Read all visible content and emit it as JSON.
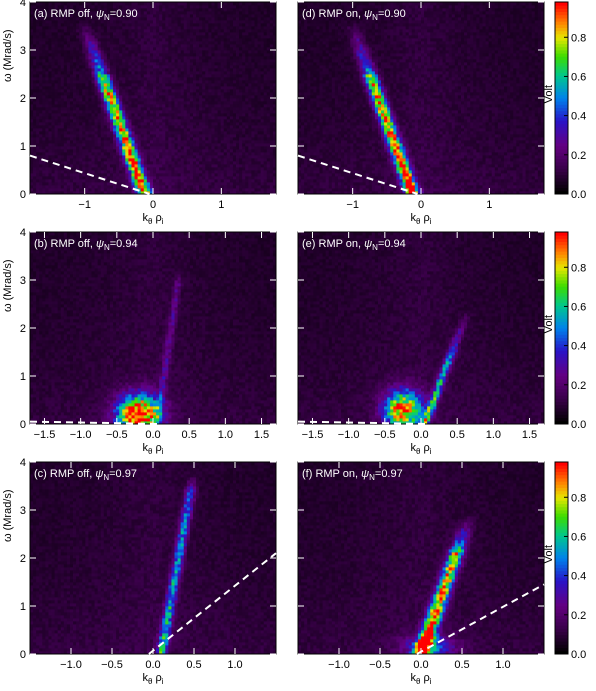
{
  "colorbar": {
    "label": "Volt",
    "ticks": [
      "0.0",
      "0.2",
      "0.4",
      "0.6",
      "0.8"
    ],
    "range": [
      0,
      0.98
    ]
  },
  "chart_data": [
    {
      "type": "heatmap",
      "panel": "(a)",
      "title_prefix": "(a) RMP off, ",
      "psi_symbol": "ψ",
      "psi_sub": "N",
      "psi_value": "=0.90",
      "xlabel_k": "k",
      "xlabel_k_sub": "θ",
      "xlabel_rho": " ρ",
      "xlabel_rho_sub": "i",
      "ylabel": "ω (Mrad/s)",
      "xlim": [
        -1.8,
        1.8
      ],
      "ylim": [
        0,
        4
      ],
      "xticks": [
        -1,
        0,
        1
      ],
      "xtick_labels": [
        "−1",
        "0",
        "1"
      ],
      "yticks": [
        0,
        1,
        2,
        3,
        4
      ],
      "ytick_labels": [
        "0",
        "1",
        "2",
        "3",
        "4"
      ],
      "ridges": [
        {
          "x0": -0.12,
          "y0": 0.0,
          "x1": -0.75,
          "y1": 2.5,
          "peak": 0.95,
          "width": 0.1,
          "fade_ymax": 3.6
        }
      ],
      "blobs": [],
      "dashed_line": [
        [
          -1.8,
          0.8
        ],
        [
          -0.05,
          0.0
        ]
      ]
    },
    {
      "type": "heatmap",
      "panel": "(d)",
      "title_prefix": "(d) RMP on, ",
      "psi_symbol": "ψ",
      "psi_sub": "N",
      "psi_value": "=0.90",
      "xlabel_k": "k",
      "xlabel_k_sub": "θ",
      "xlabel_rho": " ρ",
      "xlabel_rho_sub": "i",
      "ylabel": "",
      "xlim": [
        -1.8,
        1.8
      ],
      "ylim": [
        0,
        4
      ],
      "xticks": [
        -1,
        0,
        1
      ],
      "xtick_labels": [
        "−1",
        "0",
        "1"
      ],
      "yticks": [
        0,
        1,
        2,
        3,
        4
      ],
      "ytick_labels": [
        "",
        "",
        "",
        "",
        ""
      ],
      "ridges": [
        {
          "x0": -0.12,
          "y0": 0.0,
          "x1": -0.75,
          "y1": 2.5,
          "peak": 0.95,
          "width": 0.1,
          "fade_ymax": 3.6
        }
      ],
      "blobs": [],
      "dashed_line": [
        [
          -1.8,
          0.8
        ],
        [
          -0.05,
          0.0
        ]
      ]
    },
    {
      "type": "heatmap",
      "panel": "(b)",
      "title_prefix": "(b) RMP off, ",
      "psi_symbol": "ψ",
      "psi_sub": "N",
      "psi_value": "=0.94",
      "xlabel_k": "k",
      "xlabel_k_sub": "θ",
      "xlabel_rho": " ρ",
      "xlabel_rho_sub": "i",
      "ylabel": "ω (Mrad/s)",
      "xlim": [
        -1.7,
        1.7
      ],
      "ylim": [
        0,
        4
      ],
      "xticks": [
        -1.5,
        -1.0,
        -0.5,
        0.0,
        0.5,
        1.0,
        1.5
      ],
      "xtick_labels": [
        "−1.5",
        "−1.0",
        "−0.5",
        "0.0",
        "0.5",
        "1.0",
        "1.5"
      ],
      "yticks": [
        0,
        1,
        2,
        3,
        4
      ],
      "ytick_labels": [
        "0",
        "1",
        "2",
        "3",
        "4"
      ],
      "ridges": [
        {
          "x0": 0.05,
          "y0": 0.0,
          "x1": 0.35,
          "y1": 3.0,
          "peak": 0.2,
          "width": 0.05,
          "fade_ymax": 3.2
        }
      ],
      "blobs": [
        {
          "x": -0.2,
          "y": 0.2,
          "sx": 0.28,
          "sy": 0.4,
          "peak": 1.0
        }
      ],
      "dashed_line": [
        [
          -1.7,
          0.05
        ],
        [
          0.1,
          0.0
        ]
      ]
    },
    {
      "type": "heatmap",
      "panel": "(e)",
      "title_prefix": "(e) RMP on, ",
      "psi_symbol": "ψ",
      "psi_sub": "N",
      "psi_value": "=0.94",
      "xlabel_k": "k",
      "xlabel_k_sub": "θ",
      "xlabel_rho": " ρ",
      "xlabel_rho_sub": "i",
      "ylabel": "",
      "xlim": [
        -1.7,
        1.7
      ],
      "ylim": [
        0,
        4
      ],
      "xticks": [
        -1.5,
        -1.0,
        -0.5,
        0.0,
        0.5,
        1.0,
        1.5
      ],
      "xtick_labels": [
        "−1.5",
        "−1.0",
        "−0.5",
        "0.0",
        "0.5",
        "1.0",
        "1.5"
      ],
      "yticks": [
        0,
        1,
        2,
        3,
        4
      ],
      "ytick_labels": [
        "",
        "",
        "",
        "",
        ""
      ],
      "ridges": [
        {
          "x0": 0.05,
          "y0": 0.0,
          "x1": 0.45,
          "y1": 1.6,
          "peak": 0.55,
          "width": 0.06,
          "fade_ymax": 2.4
        }
      ],
      "blobs": [
        {
          "x": -0.25,
          "y": 0.3,
          "sx": 0.25,
          "sy": 0.4,
          "peak": 0.85
        }
      ],
      "dashed_line": [
        [
          -1.7,
          0.05
        ],
        [
          0.1,
          0.0
        ]
      ]
    },
    {
      "type": "heatmap",
      "panel": "(c)",
      "title_prefix": "(c) RMP off, ",
      "psi_symbol": "ψ",
      "psi_sub": "N",
      "psi_value": "=0.97",
      "xlabel_k": "k",
      "xlabel_k_sub": "θ",
      "xlabel_rho": " ρ",
      "xlabel_rho_sub": "i",
      "ylabel": "ω (Mrad/s)",
      "xlim": [
        -1.5,
        1.5
      ],
      "ylim": [
        0,
        4
      ],
      "xticks": [
        -1.0,
        -0.5,
        0.0,
        0.5,
        1.0
      ],
      "xtick_labels": [
        "−1.0",
        "−0.5",
        "0.0",
        "0.5",
        "1.0"
      ],
      "yticks": [
        0,
        1,
        2,
        3,
        4
      ],
      "ytick_labels": [
        "0",
        "1",
        "2",
        "3",
        "4"
      ],
      "ridges": [
        {
          "x0": 0.1,
          "y0": 0.0,
          "x1": 0.47,
          "y1": 3.5,
          "peak": 0.5,
          "width": 0.06,
          "fade_ymax": 3.7
        }
      ],
      "blobs": [],
      "dashed_line": [
        [
          -0.05,
          0.0
        ],
        [
          1.5,
          2.1
        ]
      ]
    },
    {
      "type": "heatmap",
      "panel": "(f)",
      "title_prefix": "(f) RMP on, ",
      "psi_symbol": "ψ",
      "psi_sub": "N",
      "psi_value": "=0.97",
      "xlabel_k": "k",
      "xlabel_k_sub": "θ",
      "xlabel_rho": " ρ",
      "xlabel_rho_sub": "i",
      "ylabel": "",
      "xlim": [
        -1.5,
        1.5
      ],
      "ylim": [
        0,
        4
      ],
      "xticks": [
        -1.0,
        -0.5,
        0.0,
        0.5,
        1.0
      ],
      "xtick_labels": [
        "−1.0",
        "−0.5",
        "0.0",
        "0.5",
        "1.0"
      ],
      "yticks": [
        0,
        1,
        2,
        3,
        4
      ],
      "ytick_labels": [
        "",
        "",
        "",
        "",
        ""
      ],
      "ridges": [
        {
          "x0": 0.0,
          "y0": 0.0,
          "x1": 0.45,
          "y1": 2.2,
          "peak": 0.95,
          "width": 0.09,
          "fade_ymax": 2.9
        }
      ],
      "blobs": [
        {
          "x": 0.1,
          "y": 0.15,
          "sx": 0.3,
          "sy": 0.25,
          "peak": 0.35
        }
      ],
      "dashed_line": [
        [
          -0.05,
          0.0
        ],
        [
          1.5,
          1.45
        ]
      ]
    }
  ]
}
